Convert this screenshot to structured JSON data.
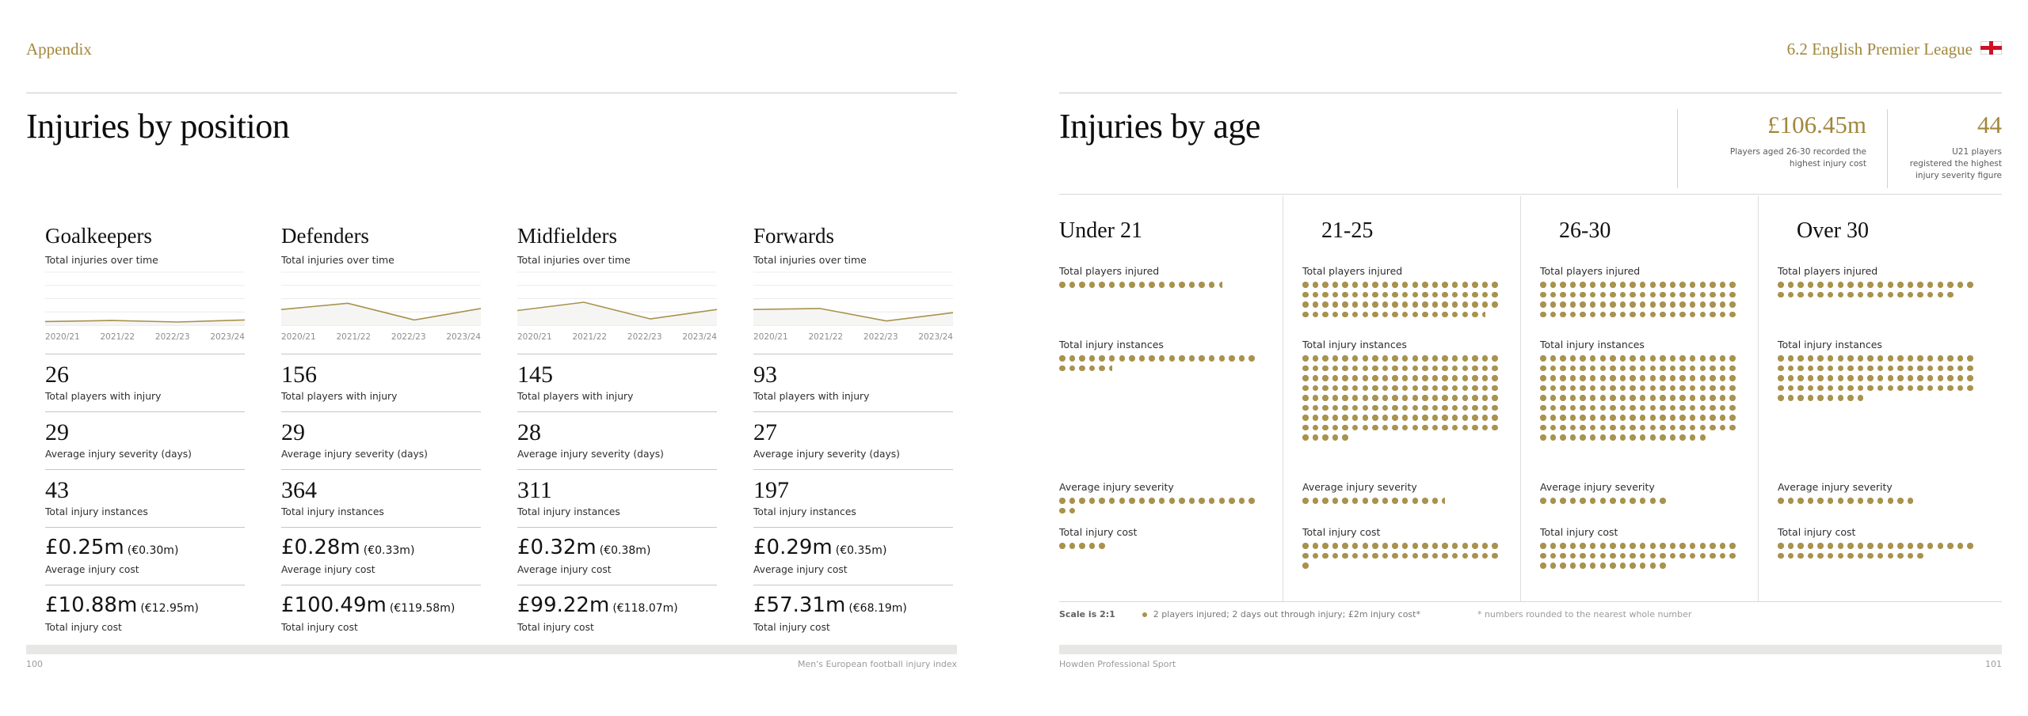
{
  "colors": {
    "accent_gold_text": "#A1883C",
    "accent_gold_dots": "#A8924D",
    "flag_red": "#CE1126"
  },
  "left_page": {
    "eyebrow": "Appendix",
    "title": "Injuries by position",
    "chart_caption": "Total injuries over time",
    "x_labels": [
      "2020/21",
      "2021/22",
      "2022/23",
      "2023/24"
    ],
    "stat_labels": [
      "Total players with injury",
      "Average injury severity (days)",
      "Total injury instances",
      "Average injury cost",
      "Total injury cost"
    ],
    "positions": [
      {
        "name": "Goalkeepers",
        "stats": [
          {
            "value": "26"
          },
          {
            "value": "29"
          },
          {
            "value": "43"
          },
          {
            "value": "£0.25m",
            "sub": "(€0.30m)",
            "money": true
          },
          {
            "value": "£10.88m",
            "sub": "(€12.95m)",
            "money": true
          }
        ]
      },
      {
        "name": "Defenders",
        "stats": [
          {
            "value": "156"
          },
          {
            "value": "29"
          },
          {
            "value": "364"
          },
          {
            "value": "£0.28m",
            "sub": "(€0.33m)",
            "money": true
          },
          {
            "value": "£100.49m",
            "sub": "(€119.58m)",
            "money": true
          }
        ]
      },
      {
        "name": "Midfielders",
        "stats": [
          {
            "value": "145"
          },
          {
            "value": "28"
          },
          {
            "value": "311"
          },
          {
            "value": "£0.32m",
            "sub": "(€0.38m)",
            "money": true
          },
          {
            "value": "£99.22m",
            "sub": "(€118.07m)",
            "money": true
          }
        ]
      },
      {
        "name": "Forwards",
        "stats": [
          {
            "value": "93"
          },
          {
            "value": "27"
          },
          {
            "value": "197"
          },
          {
            "value": "£0.29m",
            "sub": "(€0.35m)",
            "money": true
          },
          {
            "value": "£57.31m",
            "sub": "(€68.19m)",
            "money": true
          }
        ]
      }
    ]
  },
  "right_page": {
    "eyebrow": "6.2 English Premier League",
    "flag_icon": "england-flag",
    "title": "Injuries by age",
    "highlights": [
      {
        "value": "£106.45m",
        "caption": "Players aged 26-30 recorded the highest injury cost"
      },
      {
        "value": "44",
        "caption": "U21 players registered the highest injury severity figure"
      }
    ],
    "metric_labels": [
      "Total players injured",
      "Total injury instances",
      "Average injury severity",
      "Total injury cost"
    ],
    "scale_note": {
      "lead": "Scale is 2:1",
      "legend": "2 players injured; 2 days out through injury; £2m injury cost*",
      "footnote": "* numbers rounded to the nearest whole number"
    }
  },
  "footer": {
    "left_page_number": "100",
    "left_text": "Men's European football injury index",
    "right_text": "Howden Professional Sport",
    "right_page_number": "101"
  },
  "chart_data": [
    {
      "type": "line",
      "title": "Total injuries over time (per position, y-axis unlabeled)",
      "x": [
        "2020/21",
        "2021/22",
        "2022/23",
        "2023/24"
      ],
      "grid": "horizontal, 5 light gridlines",
      "legend_position": "none",
      "series": [
        {
          "name": "Goalkeepers",
          "values_pct_of_axis": [
            7,
            9,
            6,
            10
          ]
        },
        {
          "name": "Defenders",
          "values_pct_of_axis": [
            30,
            42,
            10,
            32
          ]
        },
        {
          "name": "Midfielders",
          "values_pct_of_axis": [
            28,
            44,
            12,
            30
          ]
        },
        {
          "name": "Forwards",
          "values_pct_of_axis": [
            30,
            32,
            8,
            24
          ]
        }
      ]
    },
    {
      "type": "dot-matrix",
      "title": "Injuries by age (EPL)",
      "scale": "1 dot = 2 units (scale 2:1)",
      "max_dots_per_row": 20,
      "metrics": [
        "Total players injured",
        "Total injury instances",
        "Average injury severity",
        "Total injury cost (£m)"
      ],
      "groups": [
        {
          "name": "Under 21",
          "dots": {
            "players": 16.5,
            "instances": 25.5,
            "severity": 22,
            "cost": 5
          },
          "approx_values": {
            "players": 33,
            "instances": 51,
            "severity_days": 44,
            "cost_gbp_m": 10
          }
        },
        {
          "name": "21-25",
          "dots": {
            "players": 78.5,
            "instances": 165,
            "severity": 14.5,
            "cost": 41
          },
          "approx_values": {
            "players": 157,
            "instances": 330,
            "severity_days": 29,
            "cost_gbp_m": 82
          }
        },
        {
          "name": "26-30",
          "dots": {
            "players": 80,
            "instances": 177,
            "severity": 13,
            "cost": 53
          },
          "approx_values": {
            "players": 160,
            "instances": 354,
            "severity_days": 26,
            "cost_gbp_m": 106.45
          }
        },
        {
          "name": "Over 30",
          "dots": {
            "players": 38,
            "instances": 89,
            "severity": 14,
            "cost": 35
          },
          "approx_values": {
            "players": 76,
            "instances": 178,
            "severity_days": 28,
            "cost_gbp_m": 70
          }
        }
      ]
    }
  ]
}
